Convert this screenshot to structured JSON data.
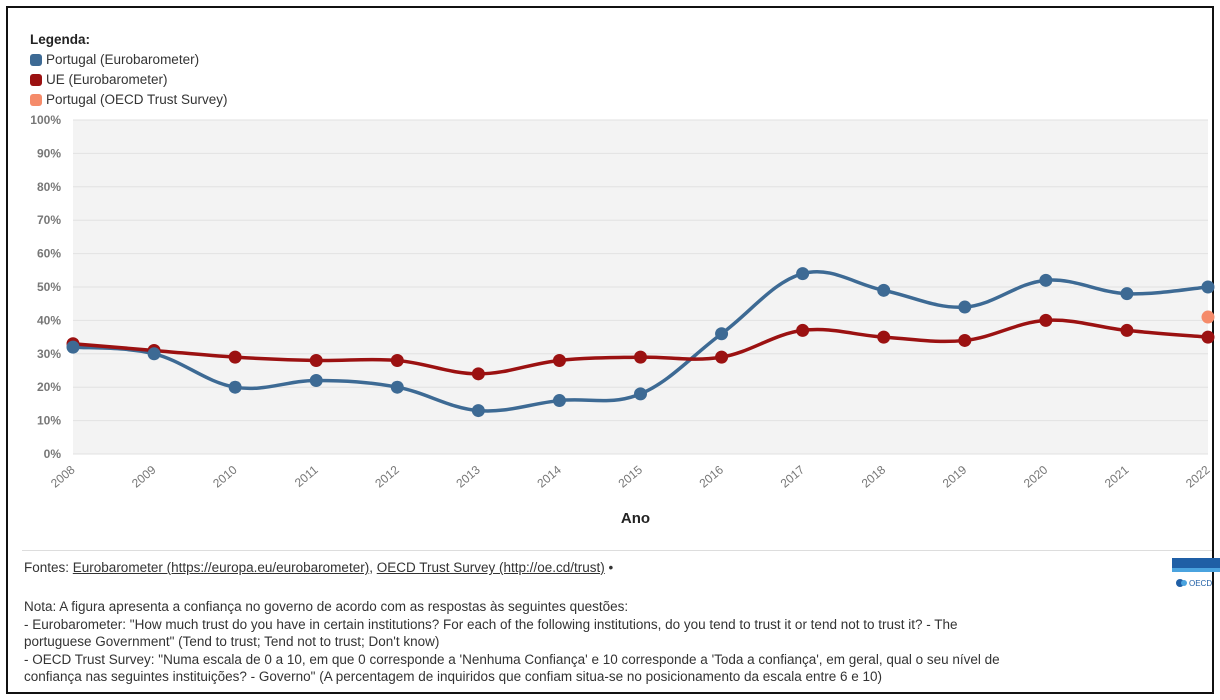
{
  "legend": {
    "title": "Legenda:",
    "items": [
      {
        "label": "Portugal (Eurobarometer)",
        "color": "#3d6a94"
      },
      {
        "label": "UE (Eurobarometer)",
        "color": "#9b1111"
      },
      {
        "label": "Portugal (OECD Trust Survey)",
        "color": "#f58b6a"
      }
    ]
  },
  "chart_data": {
    "type": "line",
    "xlabel": "Ano",
    "ylabel": "",
    "ylim": [
      0,
      100
    ],
    "yticks": [
      "0%",
      "10%",
      "20%",
      "30%",
      "40%",
      "50%",
      "60%",
      "70%",
      "80%",
      "90%",
      "100%"
    ],
    "x": [
      "2008",
      "2009",
      "2010",
      "2011",
      "2012",
      "2013",
      "2014",
      "2015",
      "2016",
      "2017",
      "2018",
      "2019",
      "2020",
      "2021",
      "2022"
    ],
    "series": [
      {
        "name": "Portugal (Eurobarometer)",
        "color": "#3d6a94",
        "values": [
          32,
          30,
          20,
          22,
          20,
          13,
          16,
          18,
          36,
          54,
          49,
          44,
          52,
          48,
          50
        ]
      },
      {
        "name": "UE (Eurobarometer)",
        "color": "#9b1111",
        "values": [
          33,
          31,
          29,
          28,
          28,
          24,
          28,
          29,
          29,
          37,
          35,
          34,
          40,
          37,
          35
        ]
      },
      {
        "name": "Portugal (OECD Trust Survey)",
        "color": "#f58b6a",
        "type": "scatter",
        "points": [
          {
            "x": "2022",
            "y": 41
          }
        ]
      }
    ],
    "grid": true
  },
  "footer": {
    "sources_prefix": "Fontes: ",
    "source1": "Eurobarometer (https://europa.eu/eurobarometer)",
    "sep": ", ",
    "source2": "OECD Trust Survey (http://oe.cd/trust)",
    "bullet": " •",
    "note_lines": [
      "Nota: A figura apresenta a confiança no governo de acordo com as respostas às seguintes questões:",
      "- Eurobarometer: \"How much trust do you have in certain institutions? For each of the following institutions, do you tend to trust it or tend not to trust it? - The",
      "portuguese Government\" (Tend to trust; Tend not to trust; Don't know)",
      "- OECD Trust Survey: \"Numa escala de 0 a 10, em que 0 corresponde a 'Nenhuma Confiança' e 10 corresponde a 'Toda a confiança', em geral, qual o seu nível de",
      "confiança nas seguintes instituições? - Governo\" (A percentagem de inquiridos que confiam situa-se no posicionamento da escala entre 6 e 10)"
    ],
    "logo_text": "OECD"
  }
}
